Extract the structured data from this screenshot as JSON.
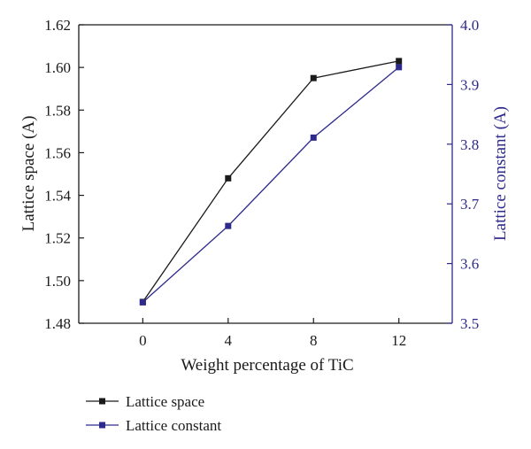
{
  "chart_data": {
    "type": "line",
    "xlabel": "Weight percentage of TiC",
    "x": [
      0,
      4,
      8,
      12
    ],
    "xlim": [
      -3,
      14.5
    ],
    "xticks": [
      "0",
      "4",
      "8",
      "12"
    ],
    "ylabel_left": "Lattice space (A)",
    "ylim_left": [
      1.48,
      1.62
    ],
    "yticks_left": [
      "1.48",
      "1.50",
      "1.52",
      "1.54",
      "1.56",
      "1.58",
      "1.60",
      "1.62"
    ],
    "ylabel_right": "Lattice constant (A)",
    "ylim_right": [
      3.5,
      4.0
    ],
    "yticks_right": [
      "3.5",
      "3.6",
      "3.7",
      "3.8",
      "3.9",
      "4.0"
    ],
    "grid": false,
    "legend_position": "bottom-left, below plot",
    "series": [
      {
        "name": "Lattice space",
        "axis": "left",
        "color": "#1a1a1a",
        "marker": "square",
        "values": [
          1.49,
          1.548,
          1.595,
          1.603
        ]
      },
      {
        "name": "Lattice constant",
        "axis": "right",
        "color": "#2e2a8c",
        "marker": "square",
        "values": [
          3.535,
          3.663,
          3.811,
          3.929
        ]
      }
    ]
  }
}
